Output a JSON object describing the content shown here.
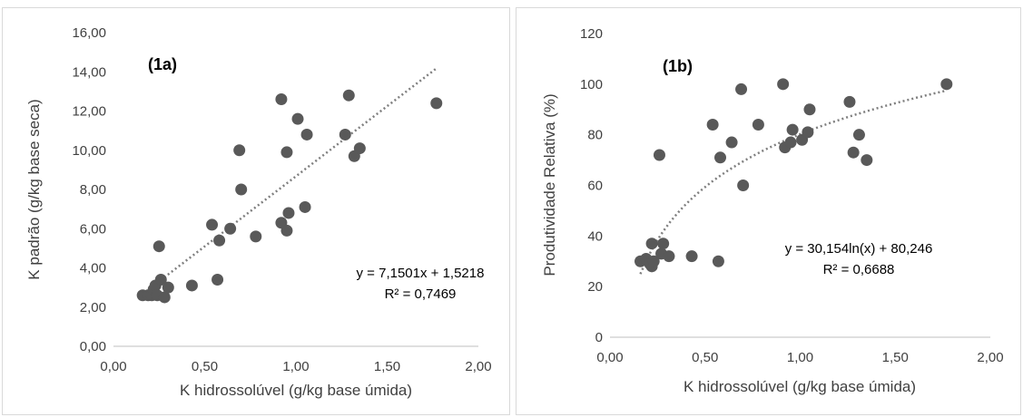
{
  "chart_data": [
    {
      "type": "scatter",
      "tag": "(1a)",
      "xlabel": "K hidrossolúvel (g/kg base úmida)",
      "ylabel": "K padrão (g/kg base seca)",
      "xlim": [
        0,
        2
      ],
      "ylim": [
        0,
        16
      ],
      "x_ticks": [
        0,
        0.5,
        1.0,
        1.5,
        2.0
      ],
      "x_tick_labels": [
        "0,00",
        "0,50",
        "1,00",
        "1,50",
        "2,00"
      ],
      "y_ticks": [
        0,
        2,
        4,
        6,
        8,
        10,
        12,
        14,
        16
      ],
      "y_tick_labels": [
        "0,00",
        "2,00",
        "4,00",
        "6,00",
        "8,00",
        "10,00",
        "12,00",
        "14,00",
        "16,00"
      ],
      "grid": false,
      "marker_color": "#595959",
      "trend_color": "#7f7f7f",
      "series": [
        {
          "x": [
            0.16,
            0.19,
            0.21,
            0.22,
            0.23,
            0.24,
            0.25,
            0.26,
            0.28,
            0.3,
            0.43,
            0.54,
            0.57,
            0.58,
            0.64,
            0.69,
            0.7,
            0.78,
            0.92,
            0.92,
            0.95,
            0.95,
            0.96,
            1.01,
            1.05,
            1.06,
            1.27,
            1.29,
            1.32,
            1.35,
            1.77
          ],
          "y": [
            2.6,
            2.6,
            2.6,
            2.9,
            3.1,
            2.6,
            5.1,
            3.4,
            2.5,
            3.0,
            3.1,
            6.2,
            3.4,
            5.4,
            6.0,
            10.0,
            8.0,
            5.6,
            12.6,
            6.3,
            9.9,
            5.9,
            6.8,
            11.6,
            7.1,
            10.8,
            10.8,
            12.8,
            9.7,
            10.1,
            12.4
          ]
        }
      ],
      "trendline": {
        "kind": "linear",
        "slope": 7.1501,
        "intercept": 1.5218,
        "x_range": [
          0.16,
          1.77
        ]
      },
      "equation_label": "y = 7,1501x + 1,5218",
      "r2_label": "R² = 0,7469"
    },
    {
      "type": "scatter",
      "tag": "(1b)",
      "xlabel": "K hidrossolúvel (g/kg base úmida)",
      "ylabel": "Produtividade Relativa (%)",
      "xlim": [
        0,
        2
      ],
      "ylim": [
        0,
        120
      ],
      "x_ticks": [
        0,
        0.5,
        1.0,
        1.5,
        2.0
      ],
      "x_tick_labels": [
        "0,00",
        "0,50",
        "1,00",
        "1,50",
        "2,00"
      ],
      "y_ticks": [
        0,
        20,
        40,
        60,
        80,
        100,
        120
      ],
      "y_tick_labels": [
        "0",
        "20",
        "40",
        "60",
        "80",
        "100",
        "120"
      ],
      "grid": false,
      "marker_color": "#595959",
      "trend_color": "#7f7f7f",
      "series": [
        {
          "x": [
            0.16,
            0.19,
            0.21,
            0.22,
            0.22,
            0.23,
            0.26,
            0.27,
            0.28,
            0.31,
            0.43,
            0.54,
            0.57,
            0.58,
            0.64,
            0.69,
            0.7,
            0.78,
            0.91,
            0.92,
            0.95,
            0.96,
            1.01,
            1.04,
            1.05,
            1.26,
            1.28,
            1.31,
            1.35,
            1.77
          ],
          "y": [
            30,
            31,
            29,
            28,
            37,
            30,
            72,
            33,
            37,
            32,
            32,
            84,
            30,
            71,
            77,
            98,
            60,
            84,
            100,
            75,
            77,
            82,
            78,
            81,
            90,
            93,
            73,
            80,
            70,
            100
          ]
        }
      ],
      "trendline": {
        "kind": "log",
        "a": 30.154,
        "b": 80.246,
        "x_range": [
          0.16,
          1.77
        ]
      },
      "equation_label": "y = 30,154ln(x) + 80,246",
      "r2_label": "R² = 0,6688"
    }
  ]
}
